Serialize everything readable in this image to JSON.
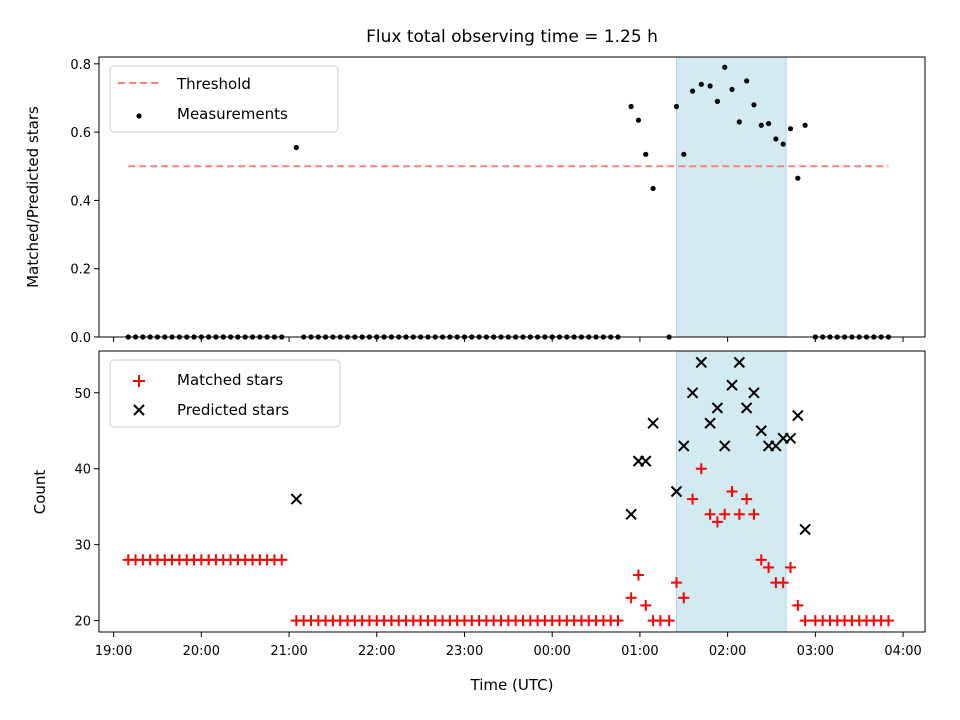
{
  "chart_data": [
    {
      "type": "scatter",
      "title": "Flux total observing time = 1.25 h",
      "xlabel": "",
      "ylabel": "Matched/Predicted stars",
      "xlim": [
        "18:50",
        "04:15"
      ],
      "ylim": [
        0,
        0.82
      ],
      "yticks": [
        0.0,
        0.2,
        0.4,
        0.6,
        0.8
      ],
      "ytick_labels": [
        "0.0",
        "0.2",
        "0.4",
        "0.6",
        "0.8"
      ],
      "legend_position": "top-left",
      "shaded_span": {
        "x0": "01:25",
        "x1": "02:40",
        "color": "#add8e6"
      },
      "series": [
        {
          "name": "Threshold",
          "kind": "line-dashed",
          "color": "#ff7f7f",
          "x": [
            "19:10",
            "03:50"
          ],
          "y": [
            0.5,
            0.5
          ]
        },
        {
          "name": "Measurements",
          "kind": "dot",
          "color": "#000000",
          "zero_runs": [
            {
              "start": "19:10",
              "end": "20:59",
              "step_min": 5
            },
            {
              "start": "21:10",
              "end": "00:49",
              "step_min": 5
            },
            {
              "start": "01:20",
              "end": "01:24",
              "step_min": 5
            },
            {
              "start": "03:00",
              "end": "03:50",
              "step_min": 5
            }
          ],
          "points": [
            [
              "21:05",
              0.555
            ],
            [
              "00:54",
              0.675
            ],
            [
              "00:59",
              0.635
            ],
            [
              "01:04",
              0.535
            ],
            [
              "01:09",
              0.435
            ],
            [
              "01:25",
              0.675
            ],
            [
              "01:30",
              0.535
            ],
            [
              "01:36",
              0.72
            ],
            [
              "01:42",
              0.74
            ],
            [
              "01:48",
              0.735
            ],
            [
              "01:53",
              0.69
            ],
            [
              "01:58",
              0.79
            ],
            [
              "02:03",
              0.725
            ],
            [
              "02:08",
              0.63
            ],
            [
              "02:13",
              0.75
            ],
            [
              "02:18",
              0.68
            ],
            [
              "02:23",
              0.62
            ],
            [
              "02:28",
              0.625
            ],
            [
              "02:33",
              0.58
            ],
            [
              "02:38",
              0.565
            ],
            [
              "02:43",
              0.61
            ],
            [
              "02:48",
              0.465
            ],
            [
              "02:53",
              0.62
            ]
          ]
        }
      ]
    },
    {
      "type": "scatter",
      "title": "",
      "xlabel": "Time (UTC)",
      "ylabel": "Count",
      "xlim": [
        "18:50",
        "04:15"
      ],
      "ylim": [
        18.5,
        55.5
      ],
      "yticks": [
        20,
        30,
        40,
        50
      ],
      "ytick_labels": [
        "20",
        "30",
        "40",
        "50"
      ],
      "xticks": [
        "19:00",
        "20:00",
        "21:00",
        "22:00",
        "23:00",
        "00:00",
        "01:00",
        "02:00",
        "03:00",
        "04:00"
      ],
      "legend_position": "top-left",
      "shaded_span": {
        "x0": "01:25",
        "x1": "02:40",
        "color": "#add8e6"
      },
      "series": [
        {
          "name": "Matched stars",
          "kind": "plus",
          "color": "#ff0000",
          "runs": [
            {
              "start": "19:10",
              "end": "20:59",
              "step_min": 5,
              "y": 28
            },
            {
              "start": "21:05",
              "end": "00:49",
              "step_min": 5,
              "y": 20
            },
            {
              "start": "03:00",
              "end": "03:50",
              "step_min": 5,
              "y": 20
            }
          ],
          "points": [
            [
              "00:54",
              23
            ],
            [
              "00:59",
              26
            ],
            [
              "01:04",
              22
            ],
            [
              "01:09",
              20
            ],
            [
              "01:14",
              20
            ],
            [
              "01:20",
              20
            ],
            [
              "01:25",
              25
            ],
            [
              "01:30",
              23
            ],
            [
              "01:36",
              36
            ],
            [
              "01:42",
              40
            ],
            [
              "01:48",
              34
            ],
            [
              "01:53",
              33
            ],
            [
              "01:58",
              34
            ],
            [
              "02:03",
              37
            ],
            [
              "02:08",
              34
            ],
            [
              "02:13",
              36
            ],
            [
              "02:18",
              34
            ],
            [
              "02:23",
              28
            ],
            [
              "02:28",
              27
            ],
            [
              "02:33",
              25
            ],
            [
              "02:38",
              25
            ],
            [
              "02:43",
              27
            ],
            [
              "02:48",
              22
            ],
            [
              "02:53",
              20
            ]
          ]
        },
        {
          "name": "Predicted stars",
          "kind": "x",
          "color": "#000000",
          "points": [
            [
              "21:05",
              36
            ],
            [
              "00:54",
              34
            ],
            [
              "00:59",
              41
            ],
            [
              "01:04",
              41
            ],
            [
              "01:09",
              46
            ],
            [
              "01:25",
              37
            ],
            [
              "01:30",
              43
            ],
            [
              "01:36",
              50
            ],
            [
              "01:42",
              54
            ],
            [
              "01:48",
              46
            ],
            [
              "01:53",
              48
            ],
            [
              "01:58",
              43
            ],
            [
              "02:03",
              51
            ],
            [
              "02:08",
              54
            ],
            [
              "02:13",
              48
            ],
            [
              "02:18",
              50
            ],
            [
              "02:23",
              45
            ],
            [
              "02:28",
              43
            ],
            [
              "02:33",
              43
            ],
            [
              "02:38",
              44
            ],
            [
              "02:43",
              44
            ],
            [
              "02:48",
              47
            ],
            [
              "02:53",
              32
            ]
          ]
        }
      ]
    }
  ]
}
